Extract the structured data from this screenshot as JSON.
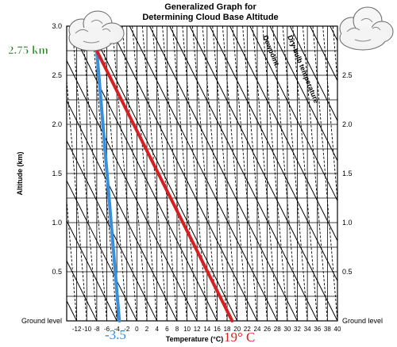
{
  "chart_data": {
    "type": "line",
    "title": "Generalized Graph for",
    "subtitle": "Determining Cloud Base Altitude",
    "xlabel": "Temperature (°C)",
    "ylabel": "Altitude (km)",
    "xlim": [
      -14,
      40
    ],
    "ylim": [
      0,
      3.0
    ],
    "x_ticks": [
      "-12",
      "-10",
      "-8",
      "-6",
      "-4",
      "-2",
      "0",
      "2",
      "4",
      "6",
      "8",
      "10",
      "12",
      "14",
      "16",
      "18",
      "20",
      "22",
      "24",
      "26",
      "28",
      "30",
      "32",
      "34",
      "36",
      "38",
      "40"
    ],
    "y_ticks": [
      "Ground level",
      "0.5",
      "1.0",
      "1.5",
      "2.0",
      "2.5",
      "3.0"
    ],
    "y_ticks_right": [
      "Ground level",
      "0.5",
      "1.0",
      "1.5",
      "2.0",
      "2.5",
      "3.0"
    ],
    "diagonal_labels": [
      "Dewpoint",
      "Dry-bulb temperature"
    ],
    "series": [
      {
        "name": "Dewpoint",
        "color": "#3a8fdc",
        "x": [
          -3.5,
          -8.0
        ],
        "y": [
          0.0,
          2.75
        ]
      },
      {
        "name": "Dry-bulb temperature",
        "color": "#d42020",
        "x": [
          19.0,
          -8.0
        ],
        "y": [
          0.0,
          2.75
        ]
      }
    ],
    "annotations": {
      "cloud_base": "2.75 km",
      "dewpoint_start": "-3.5",
      "temp_start": "19° C"
    },
    "grid": true
  }
}
